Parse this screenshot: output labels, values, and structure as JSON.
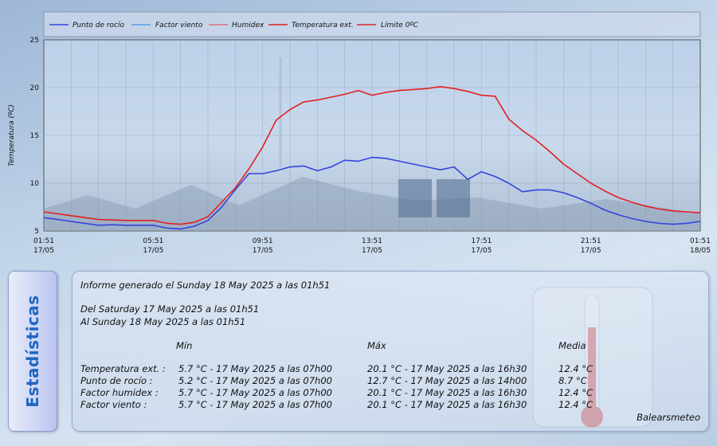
{
  "colors": {
    "punto_rocio": "#3344dd",
    "factor_viento": "#5599ee",
    "humidex": "#e07070",
    "temperatura_ext": "#e02020",
    "limite": "#d42a2a",
    "side_tab_text": "#1f66c2"
  },
  "chart_data": {
    "type": "line",
    "ylabel": "Temperatura (ºC)",
    "ylim": [
      5,
      25
    ],
    "yticks": [
      "5",
      "10",
      "15",
      "20",
      "25"
    ],
    "xticks": [
      {
        "time": "01:51",
        "date": "17/05"
      },
      {
        "time": "05:51",
        "date": "17/05"
      },
      {
        "time": "09:51",
        "date": "17/05"
      },
      {
        "time": "13:51",
        "date": "17/05"
      },
      {
        "time": "17:51",
        "date": "17/05"
      },
      {
        "time": "21:51",
        "date": "17/05"
      },
      {
        "time": "01:51",
        "date": "18/05"
      }
    ],
    "x_hours": [
      0,
      0.5,
      1,
      1.5,
      2,
      2.5,
      3,
      3.5,
      4,
      4.5,
      5,
      5.5,
      6,
      6.5,
      7,
      7.5,
      8,
      8.5,
      9,
      9.5,
      10,
      10.5,
      11,
      11.5,
      12,
      12.5,
      13,
      13.5,
      14,
      14.5,
      15,
      15.5,
      16,
      16.5,
      17,
      17.5,
      18,
      18.5,
      19,
      19.5,
      20,
      20.5,
      21,
      21.5,
      22,
      22.5,
      23,
      23.5,
      24
    ],
    "legend": [
      "Punto de rocío",
      "Factor viento",
      "Humidex",
      "Temperatura ext.",
      "Límite 0ºC"
    ],
    "series": [
      {
        "name": "Temperatura ext.",
        "values": [
          7.0,
          6.8,
          6.6,
          6.4,
          6.2,
          6.15,
          6.1,
          6.1,
          6.1,
          5.8,
          5.7,
          5.9,
          6.5,
          8.0,
          9.5,
          11.5,
          13.8,
          16.6,
          17.7,
          18.5,
          18.7,
          19.0,
          19.3,
          19.7,
          19.2,
          19.5,
          19.7,
          19.8,
          19.9,
          20.1,
          19.9,
          19.6,
          19.2,
          19.1,
          16.7,
          15.5,
          14.5,
          13.3,
          12.0,
          11.0,
          10.0,
          9.2,
          8.5,
          8.0,
          7.6,
          7.3,
          7.1,
          7.0,
          6.9
        ]
      },
      {
        "name": "Punto de rocío",
        "values": [
          6.4,
          6.2,
          6.0,
          5.8,
          5.6,
          5.65,
          5.6,
          5.6,
          5.6,
          5.3,
          5.2,
          5.5,
          6.1,
          7.5,
          9.3,
          11.0,
          11.0,
          11.3,
          11.7,
          11.8,
          11.3,
          11.7,
          12.4,
          12.3,
          12.7,
          12.6,
          12.3,
          12.0,
          11.7,
          11.4,
          11.7,
          10.4,
          11.2,
          10.7,
          10.0,
          9.1,
          9.3,
          9.3,
          9.0,
          8.5,
          7.9,
          7.2,
          6.7,
          6.3,
          6.0,
          5.8,
          5.7,
          5.8,
          6.0
        ]
      }
    ]
  },
  "stats": {
    "panel_title": "Estadísticas",
    "generated": "Informe generado el Sunday 18 May 2025 a las 01h51",
    "from": "Del Saturday 17 May 2025 a las 01h51",
    "to": "Al Sunday 18 May 2025 a las 01h51",
    "headers": {
      "min": "Mín",
      "max": "Máx",
      "avg": "Media"
    },
    "rows": [
      {
        "label": "Temperatura ext. :",
        "min": "5.7 °C - 17 May 2025 a las 07h00",
        "max": "20.1 °C - 17 May 2025 a las 16h30",
        "avg": "12.4 °C"
      },
      {
        "label": "Punto de rocío :",
        "min": "5.2 °C - 17 May 2025 a las 07h00",
        "max": "12.7 °C - 17 May 2025 a las 14h00",
        "avg": "8.7 °C"
      },
      {
        "label": "Factor humidex :",
        "min": "5.7 °C - 17 May 2025 a las 07h00",
        "max": "20.1 °C - 17 May 2025 a las 16h30",
        "avg": "12.4 °C"
      },
      {
        "label": "Factor viento :",
        "min": "5.7 °C - 17 May 2025 a las 07h00",
        "max": "20.1 °C - 17 May 2025 a las 16h30",
        "avg": "12.4 °C"
      }
    ],
    "brand": "Balearsmeteo"
  }
}
